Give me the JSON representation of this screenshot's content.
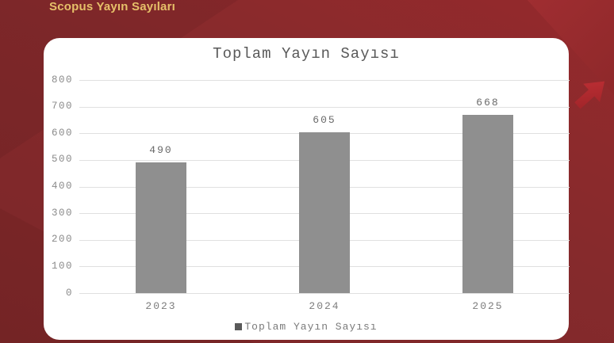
{
  "header": {
    "title": "Scopus Yayın Sayıları"
  },
  "chart_data": {
    "type": "bar",
    "title": "Toplam Yayın Sayısı",
    "categories": [
      "2023",
      "2024",
      "2025"
    ],
    "values": [
      490,
      605,
      668
    ],
    "series": [
      {
        "name": "Toplam Yayın Sayısı",
        "values": [
          490,
          605,
          668
        ]
      }
    ],
    "xlabel": "",
    "ylabel": "",
    "ylim": [
      0,
      800
    ],
    "ytick_step": 100,
    "yticks": [
      0,
      100,
      200,
      300,
      400,
      500,
      600,
      700,
      800
    ],
    "grid": true,
    "legend_position": "bottom",
    "legend": [
      {
        "label": "Toplam Yayın Sayısı",
        "marker_color": "#5a5a5a"
      }
    ],
    "colors": {
      "bar": "#8f8f8f",
      "title": "#595959",
      "tick_label": "#8a8a8a",
      "value_label": "#696969",
      "gridline": "#e0e0e0",
      "panel_bg": "#ffffff",
      "page_bg": "#842a2c",
      "header_gold": "#e6c069",
      "arrow_red_light": "#c13036",
      "arrow_red_dark": "#9c2327"
    }
  }
}
